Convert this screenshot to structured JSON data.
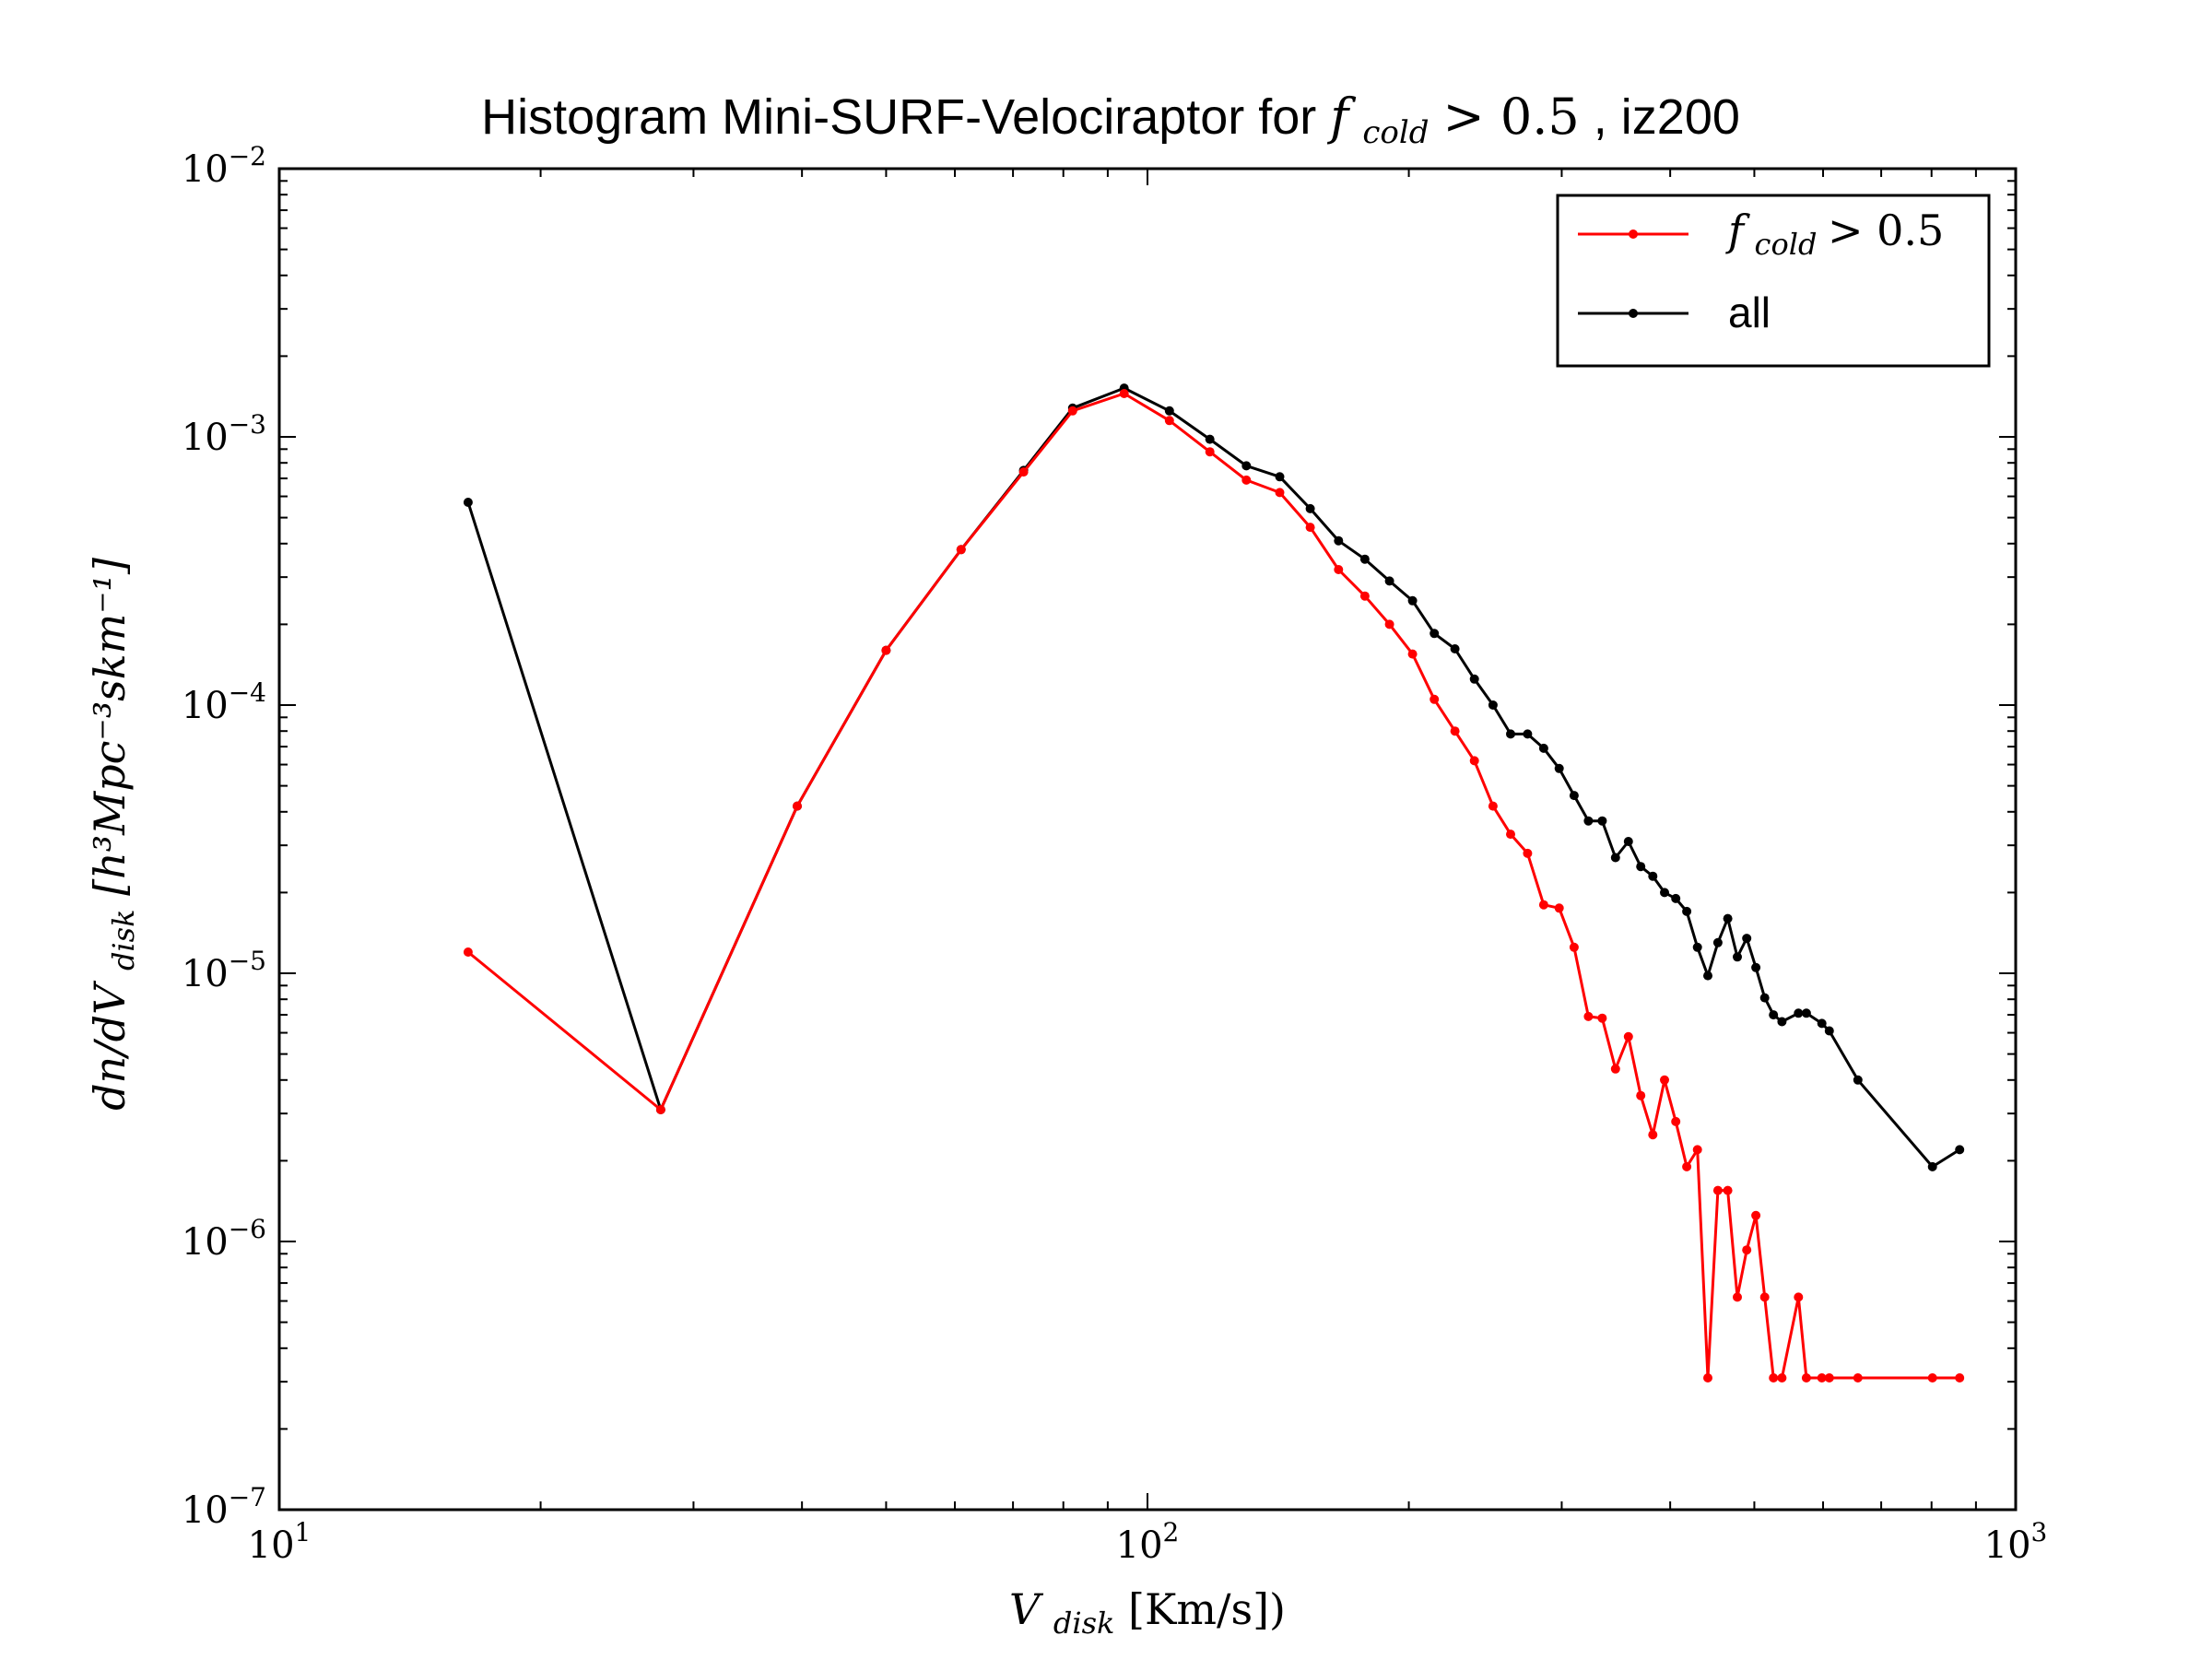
{
  "chart_data": {
    "type": "line",
    "title": {
      "text_before": "Histogram Mini-SURF-Velociraptor for ",
      "math_var": "f",
      "math_sub": "cold",
      "math_rel": " > 0.5",
      "text_after": ", iz200"
    },
    "xlabel": {
      "var": "V",
      "sub": "disk",
      "rest": "[Km/s])"
    },
    "ylabel": {
      "text": "dn/dV",
      "sub": "disk",
      "rest": "[h³Mpc⁻³skm⁻¹]"
    },
    "x_scale": "log",
    "y_scale": "log",
    "xlim": [
      10,
      1000
    ],
    "ylim": [
      1e-07,
      0.01
    ],
    "x_ticks": [
      {
        "value": 10,
        "base": "10",
        "exp": "1"
      },
      {
        "value": 100,
        "base": "10",
        "exp": "2"
      },
      {
        "value": 1000,
        "base": "10",
        "exp": "3"
      }
    ],
    "y_ticks": [
      {
        "value": 1e-07,
        "base": "10",
        "exp": "−7"
      },
      {
        "value": 1e-06,
        "base": "10",
        "exp": "−6"
      },
      {
        "value": 1e-05,
        "base": "10",
        "exp": "−5"
      },
      {
        "value": 0.0001,
        "base": "10",
        "exp": "−4"
      },
      {
        "value": 0.001,
        "base": "10",
        "exp": "−3"
      },
      {
        "value": 0.01,
        "base": "10",
        "exp": "−2"
      }
    ],
    "grid": false,
    "legend_position": "top-right",
    "series": [
      {
        "legend": {
          "var": "f",
          "sub": "cold",
          "rel": " > 0.5"
        },
        "color": "#ff0000",
        "points": [
          [
            16.5,
            1.2e-05
          ],
          [
            27.5,
            3.1e-06
          ],
          [
            39.5,
            4.2e-05
          ],
          [
            50,
            0.00016
          ],
          [
            61,
            0.00038
          ],
          [
            72,
            0.00074
          ],
          [
            82,
            0.00125
          ],
          [
            94,
            0.00145
          ],
          [
            106,
            0.00115
          ],
          [
            118,
            0.00088
          ],
          [
            130,
            0.00069
          ],
          [
            142,
            0.00062
          ],
          [
            154,
            0.00046
          ],
          [
            166,
            0.00032
          ],
          [
            178,
            0.000255
          ],
          [
            190,
            0.0002
          ],
          [
            202,
            0.000155
          ],
          [
            214,
            0.000105
          ],
          [
            226,
            8e-05
          ],
          [
            238,
            6.2e-05
          ],
          [
            250,
            4.2e-05
          ],
          [
            262,
            3.3e-05
          ],
          [
            274,
            2.8e-05
          ],
          [
            286,
            1.8e-05
          ],
          [
            298,
            1.75e-05
          ],
          [
            310,
            1.25e-05
          ],
          [
            322,
            6.9e-06
          ],
          [
            334,
            6.8e-06
          ],
          [
            346,
            4.4e-06
          ],
          [
            358,
            5.8e-06
          ],
          [
            370,
            3.5e-06
          ],
          [
            382,
            2.5e-06
          ],
          [
            394,
            4e-06
          ],
          [
            406,
            2.8e-06
          ],
          [
            418,
            1.9e-06
          ],
          [
            430,
            2.2e-06
          ],
          [
            442,
            3.1e-07
          ],
          [
            454,
            1.55e-06
          ],
          [
            466,
            1.55e-06
          ],
          [
            478,
            6.2e-07
          ],
          [
            490,
            9.3e-07
          ],
          [
            502,
            1.25e-06
          ],
          [
            514,
            6.2e-07
          ],
          [
            526,
            3.1e-07
          ],
          [
            538,
            3.1e-07
          ],
          [
            562,
            6.2e-07
          ],
          [
            574,
            3.1e-07
          ],
          [
            598,
            3.1e-07
          ],
          [
            610,
            3.1e-07
          ],
          [
            658,
            3.1e-07
          ],
          [
            802,
            3.1e-07
          ],
          [
            862,
            3.1e-07
          ]
        ]
      },
      {
        "legend": {
          "text": "all"
        },
        "color": "#000000",
        "points": [
          [
            16.5,
            0.00057
          ],
          [
            27.5,
            3.1e-06
          ],
          [
            39.5,
            4.2e-05
          ],
          [
            50,
            0.00016
          ],
          [
            61,
            0.00038
          ],
          [
            72,
            0.00075
          ],
          [
            82,
            0.00128
          ],
          [
            94,
            0.00152
          ],
          [
            106,
            0.00125
          ],
          [
            118,
            0.00098
          ],
          [
            130,
            0.00078
          ],
          [
            142,
            0.00071
          ],
          [
            154,
            0.00054
          ],
          [
            166,
            0.00041
          ],
          [
            178,
            0.00035
          ],
          [
            190,
            0.00029
          ],
          [
            202,
            0.000245
          ],
          [
            214,
            0.000185
          ],
          [
            226,
            0.000162
          ],
          [
            238,
            0.000125
          ],
          [
            250,
            0.0001
          ],
          [
            262,
            7.8e-05
          ],
          [
            274,
            7.8e-05
          ],
          [
            286,
            6.9e-05
          ],
          [
            298,
            5.8e-05
          ],
          [
            310,
            4.6e-05
          ],
          [
            322,
            3.7e-05
          ],
          [
            334,
            3.7e-05
          ],
          [
            346,
            2.7e-05
          ],
          [
            358,
            3.1e-05
          ],
          [
            370,
            2.5e-05
          ],
          [
            382,
            2.3e-05
          ],
          [
            394,
            2e-05
          ],
          [
            406,
            1.9e-05
          ],
          [
            418,
            1.7e-05
          ],
          [
            430,
            1.25e-05
          ],
          [
            442,
            9.8e-06
          ],
          [
            454,
            1.3e-05
          ],
          [
            466,
            1.6e-05
          ],
          [
            478,
            1.15e-05
          ],
          [
            490,
            1.35e-05
          ],
          [
            502,
            1.05e-05
          ],
          [
            514,
            8.1e-06
          ],
          [
            526,
            7e-06
          ],
          [
            538,
            6.6e-06
          ],
          [
            562,
            7.1e-06
          ],
          [
            574,
            7.1e-06
          ],
          [
            598,
            6.5e-06
          ],
          [
            610,
            6.1e-06
          ],
          [
            658,
            4e-06
          ],
          [
            802,
            1.9e-06
          ],
          [
            862,
            2.2e-06
          ]
        ]
      }
    ]
  }
}
